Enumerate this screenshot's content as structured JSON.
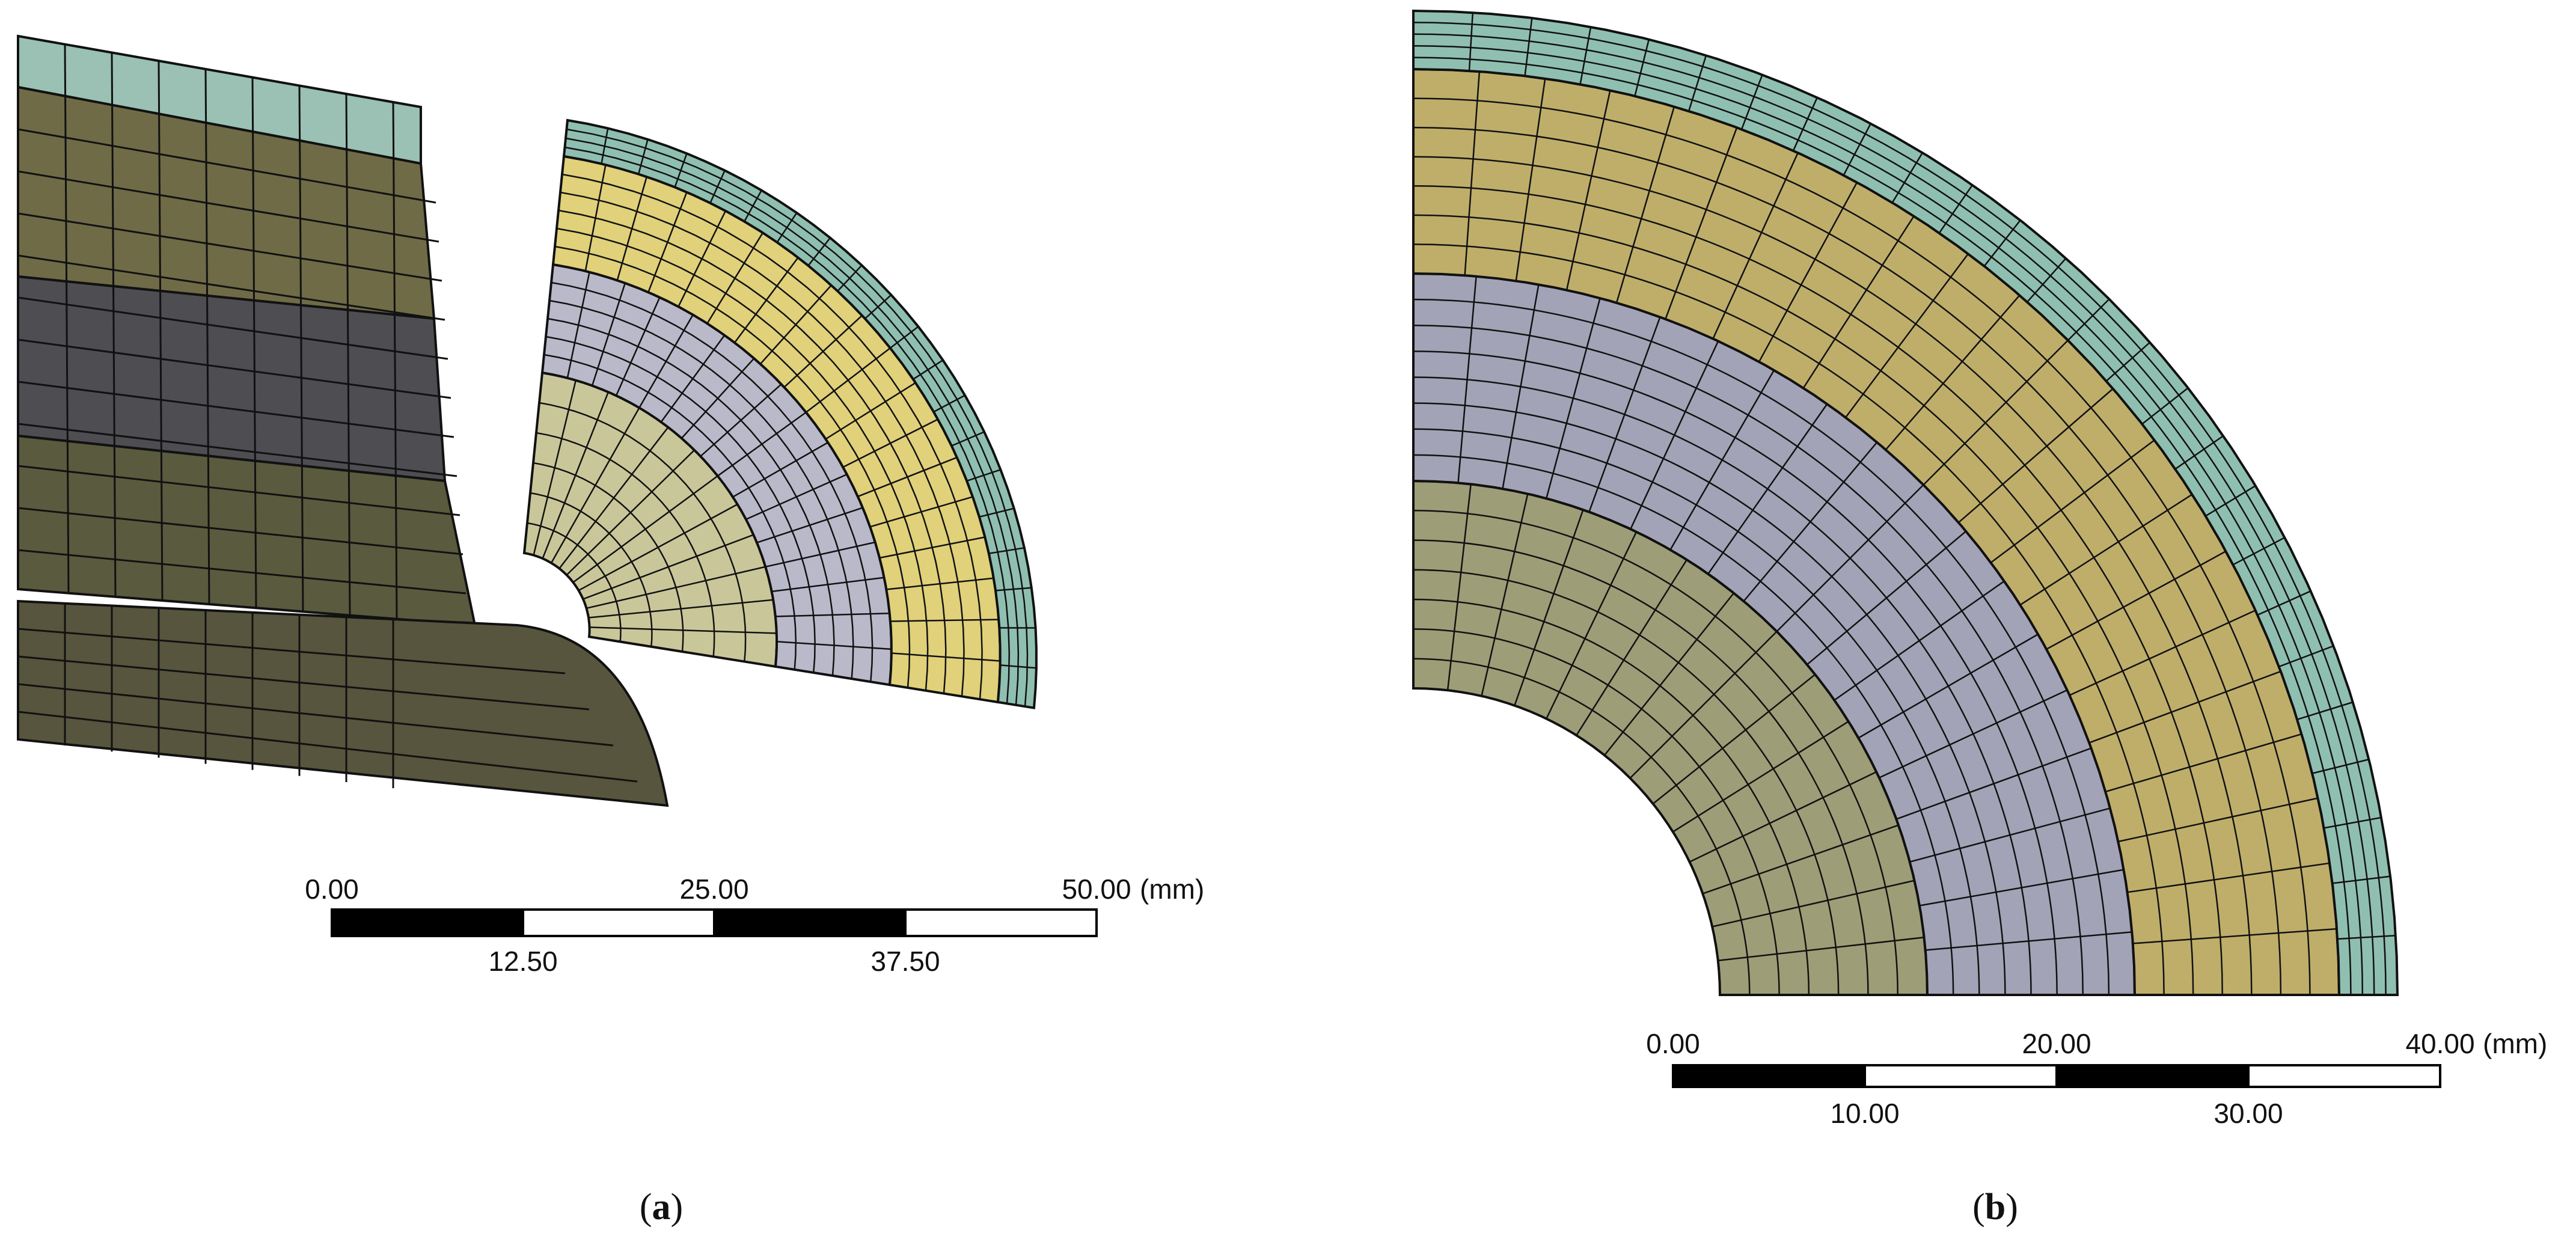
{
  "panel_a": {
    "caption": {
      "open": "(",
      "letter": "a",
      "close": ")"
    },
    "scale_bar": {
      "top_labels": [
        "0.00",
        "25.00",
        "50.00"
      ],
      "bottom_labels": [
        "12.50",
        "37.50"
      ],
      "unit": "(mm)"
    }
  },
  "panel_b": {
    "caption": {
      "open": "(",
      "letter": "b",
      "close": ")"
    },
    "scale_bar": {
      "top_labels": [
        "0.00",
        "20.00",
        "40.00"
      ],
      "bottom_labels": [
        "10.00",
        "30.00"
      ],
      "unit": "(mm)"
    }
  },
  "colors": {
    "inner_layer": "#9d9d78",
    "middle_layer": "#a3a3b7",
    "outer_layer": "#bfae6a",
    "shell_layer": "#8fbfb0",
    "mesh_line": "#111111",
    "scale_dark": "#000000",
    "scale_light": "#ffffff"
  }
}
